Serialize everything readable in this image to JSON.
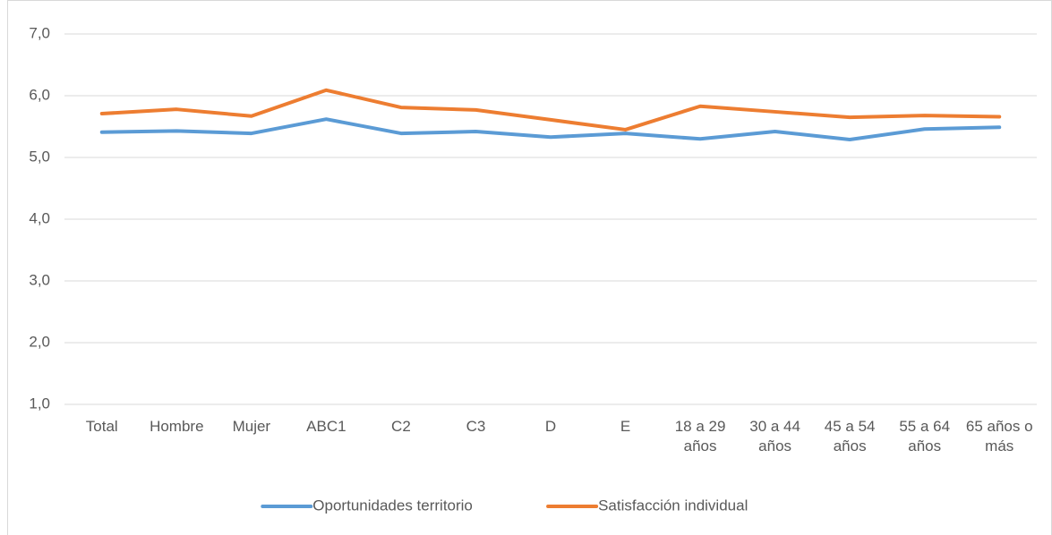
{
  "chart_data": {
    "type": "line",
    "categories": [
      "Total",
      "Hombre",
      "Mujer",
      "ABC1",
      "C2",
      "C3",
      "D",
      "E",
      "18 a 29 años",
      "30 a 44 años",
      "45 a 54 años",
      "55 a 64 años",
      "65 años o más"
    ],
    "series": [
      {
        "name": "Oportunidades territorio",
        "color": "#5b9bd5",
        "values": [
          5.41,
          5.43,
          5.39,
          5.62,
          5.39,
          5.42,
          5.33,
          5.39,
          5.3,
          5.42,
          5.29,
          5.46,
          5.49
        ]
      },
      {
        "name": "Satisfacción individual",
        "color": "#ed7d31",
        "values": [
          5.71,
          5.78,
          5.67,
          6.09,
          5.81,
          5.77,
          5.61,
          5.45,
          5.83,
          5.74,
          5.65,
          5.68,
          5.66
        ]
      }
    ],
    "ylim": [
      1,
      7
    ],
    "yticks": [
      {
        "value": 1,
        "label": "1,0"
      },
      {
        "value": 2,
        "label": "2,0"
      },
      {
        "value": 3,
        "label": "3,0"
      },
      {
        "value": 4,
        "label": "4,0"
      },
      {
        "value": 5,
        "label": "5,0"
      },
      {
        "value": 6,
        "label": "6,0"
      },
      {
        "value": 7,
        "label": "7,0"
      }
    ],
    "grid": true,
    "legend": "bottom"
  }
}
